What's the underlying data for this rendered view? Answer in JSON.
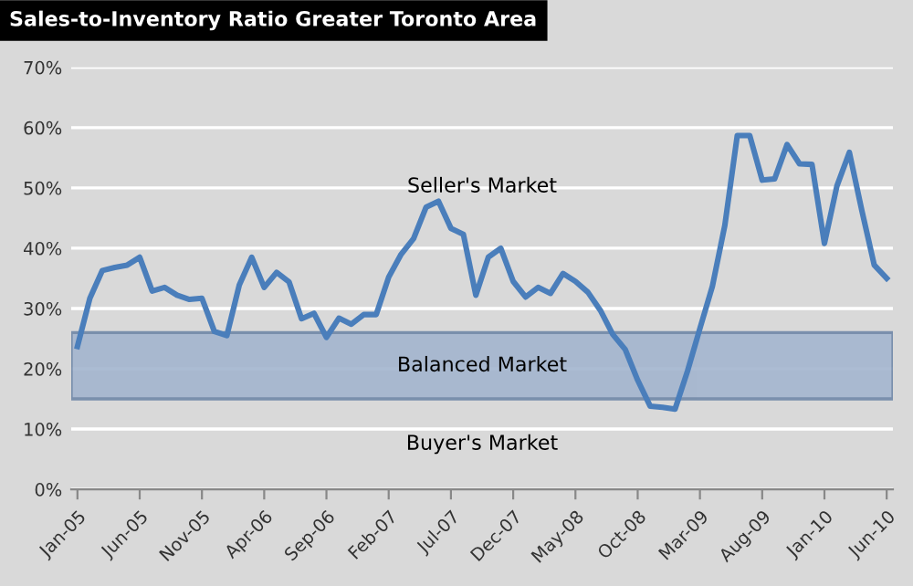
{
  "chart_data": {
    "type": "line",
    "title": "Sales-to-Inventory Ratio Greater Toronto Area",
    "categories": [
      "Jan-05",
      null,
      null,
      null,
      null,
      "Jun-05",
      null,
      null,
      null,
      null,
      "Nov-05",
      null,
      null,
      null,
      null,
      "Apr-06",
      null,
      null,
      null,
      null,
      "Sep-06",
      null,
      null,
      null,
      null,
      "Feb-07",
      null,
      null,
      null,
      null,
      "Jul-07",
      null,
      null,
      null,
      null,
      "Dec-07",
      null,
      null,
      null,
      null,
      "May-08",
      null,
      null,
      null,
      null,
      "Oct-08",
      null,
      null,
      null,
      null,
      "Mar-09",
      null,
      null,
      null,
      null,
      "Aug-09",
      null,
      null,
      null,
      null,
      "Jan-10",
      null,
      null,
      null,
      null,
      "Jun-10"
    ],
    "series": [
      {
        "color": "#4a7ebb",
        "values": [
          23.7,
          31.7,
          36.3,
          36.8,
          37.2,
          38.5,
          32.9,
          33.5,
          32.2,
          31.5,
          31.7,
          26.2,
          25.5,
          33.9,
          38.5,
          33.5,
          36.0,
          34.4,
          28.3,
          29.2,
          25.2,
          28.4,
          27.4,
          29.0,
          29.0,
          35.2,
          39.0,
          41.6,
          46.8,
          47.8,
          43.3,
          42.3,
          32.2,
          38.5,
          40.0,
          34.5,
          31.9,
          33.5,
          32.5,
          35.8,
          34.5,
          32.7,
          29.7,
          25.7,
          23.2,
          18.1,
          13.8,
          13.6,
          13.3,
          19.6,
          26.7,
          33.7,
          43.8,
          58.7,
          58.7,
          51.3,
          51.5,
          57.2,
          54.0,
          53.9,
          40.8,
          50.3,
          55.9,
          46.3,
          37.2,
          35.0
        ]
      }
    ],
    "ylim": [
      0,
      70
    ],
    "yticks": [
      {
        "value": 0,
        "label": "0%"
      },
      {
        "value": 10,
        "label": "10%"
      },
      {
        "value": 20,
        "label": "20%"
      },
      {
        "value": 30,
        "label": "30%"
      },
      {
        "value": 40,
        "label": "40%"
      },
      {
        "value": 50,
        "label": "50%"
      },
      {
        "value": 60,
        "label": "60%"
      },
      {
        "value": 70,
        "label": "70%"
      }
    ],
    "grid": "y",
    "bands": [
      {
        "axis": "y",
        "from": 15,
        "to": 26,
        "label": "Balanced Market",
        "color": "#a3b5cf"
      }
    ],
    "annotations": [
      "Seller's Market",
      "Buyer's Market"
    ],
    "legend": false,
    "marker": "none",
    "line_style": "solid"
  }
}
